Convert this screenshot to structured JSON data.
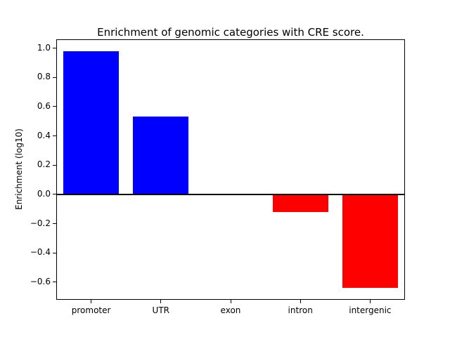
{
  "chart_data": {
    "type": "bar",
    "title": "Enrichment of genomic categories with CRE score.",
    "xlabel": "",
    "ylabel": "Enrichment (log10)",
    "categories": [
      "promoter",
      "UTR",
      "exon",
      "intron",
      "intergenic"
    ],
    "values": [
      0.98,
      0.53,
      0.0,
      -0.12,
      -0.64
    ],
    "bar_colors": [
      "#0000ff",
      "#0000ff",
      "#0000ff",
      "#ff0000",
      "#ff0000"
    ],
    "positive_color": "#0000ff",
    "negative_color": "#ff0000",
    "yticks": [
      -0.6,
      -0.4,
      -0.2,
      0.0,
      0.2,
      0.4,
      0.6,
      0.8,
      1.0
    ],
    "ylim": [
      -0.72,
      1.06
    ],
    "zero_line": true,
    "grid": false,
    "legend_position": "none",
    "background_color": "#ffffff",
    "axis_color": "#000000"
  }
}
